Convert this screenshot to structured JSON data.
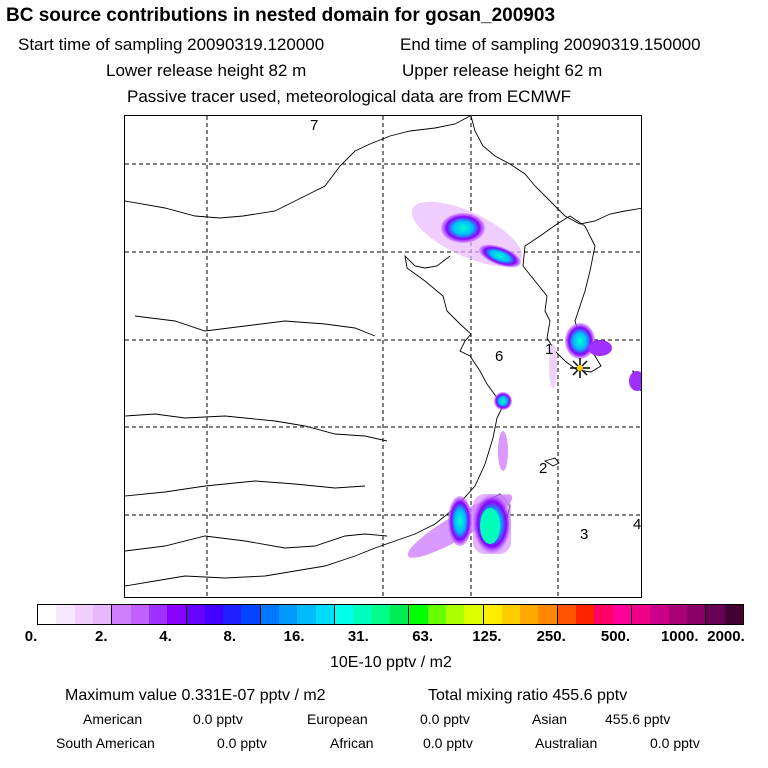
{
  "header": {
    "title": "BC  source contributions in nested domain for gosan_200903",
    "start_label": "Start time of sampling 20090319.120000",
    "end_label": "End time of sampling 20090319.150000",
    "lower_label": "Lower release height   82 m",
    "upper_label": "Upper release height   62 m",
    "tracer_note": "Passive tracer used, meteorological data are from ECMWF"
  },
  "map": {
    "region_labels": [
      "7",
      "1",
      "6",
      "2",
      "3",
      "4"
    ],
    "receptor_marker": "star-icon"
  },
  "colorbar": {
    "ticks": [
      "0.",
      "2.",
      "4.",
      "8.",
      "16.",
      "31.",
      "63.",
      "125.",
      "250.",
      "500.",
      "1000.",
      "2000."
    ],
    "unit": "10E-10 pptv / m2",
    "colors": [
      "#ffffff",
      "#f8e8ff",
      "#f0d0ff",
      "#e8b8ff",
      "#d080ff",
      "#c060ff",
      "#a030ff",
      "#8800ff",
      "#6600ff",
      "#4400ff",
      "#2020ff",
      "#0044ff",
      "#0077ff",
      "#0099ff",
      "#00bbff",
      "#00ddff",
      "#00ffee",
      "#00ffbb",
      "#00ff88",
      "#00ee55",
      "#00ff00",
      "#66ff00",
      "#aaff00",
      "#ddff00",
      "#ffee00",
      "#ffcc00",
      "#ffaa00",
      "#ff8800",
      "#ff5500",
      "#ff2200",
      "#ff0066",
      "#ff0099",
      "#ee0088",
      "#cc0088",
      "#aa0077",
      "#880066",
      "#660055",
      "#440033"
    ]
  },
  "stats": {
    "max_value": "Maximum value  0.331E-07 pptv / m2",
    "total": "Total mixing ratio      455.6 pptv",
    "american_label": "American",
    "american_value": "0.0 pptv",
    "european_label": "European",
    "european_value": "0.0 pptv",
    "asian_label": "Asian",
    "asian_value": "455.6 pptv",
    "south_american_label": "South American",
    "south_american_value": "0.0 pptv",
    "african_label": "African",
    "african_value": "0.0 pptv",
    "australian_label": "Australian",
    "australian_value": "0.0 pptv"
  }
}
